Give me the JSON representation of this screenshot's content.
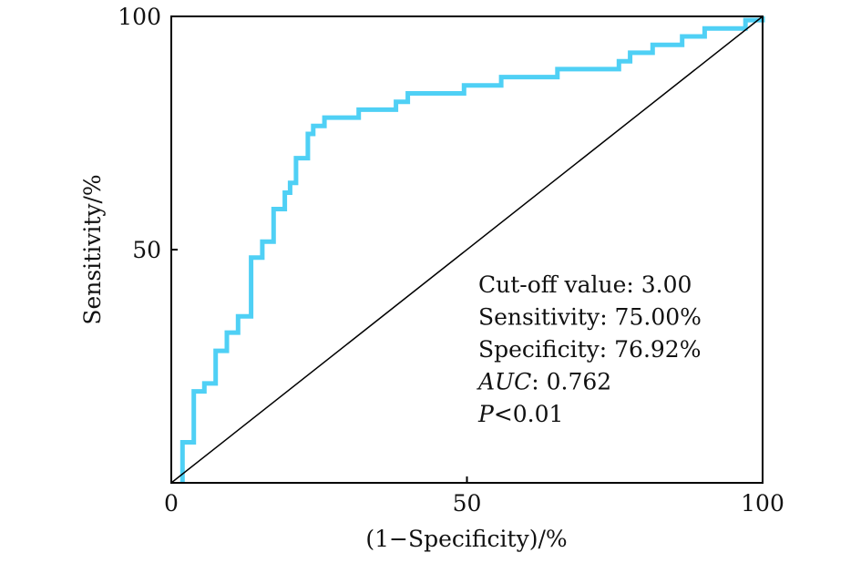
{
  "chart_data": {
    "type": "line",
    "title": "",
    "xlabel": "(1−Specificity)/%",
    "ylabel": "Sensitivity/%",
    "xlim": [
      0,
      100
    ],
    "ylim": [
      0,
      100
    ],
    "xticks": [
      "0",
      "50",
      "100"
    ],
    "yticks": [
      "50",
      "100"
    ],
    "grid": false,
    "legend": "none",
    "series": [
      {
        "color": "#4fd0f5",
        "points": [
          [
            1.9,
            0
          ],
          [
            1.9,
            0.4
          ],
          [
            1.9,
            8.7
          ],
          [
            3.8,
            8.7
          ],
          [
            3.8,
            19.6
          ],
          [
            5.6,
            19.6
          ],
          [
            5.6,
            21.3
          ],
          [
            7.5,
            21.3
          ],
          [
            7.5,
            28.3
          ],
          [
            9.4,
            28.3
          ],
          [
            9.4,
            32.2
          ],
          [
            11.3,
            32.2
          ],
          [
            11.3,
            35.7
          ],
          [
            13.5,
            35.7
          ],
          [
            13.5,
            48.3
          ],
          [
            15.4,
            48.3
          ],
          [
            15.4,
            51.7
          ],
          [
            17.3,
            51.7
          ],
          [
            17.3,
            58.7
          ],
          [
            19.2,
            58.7
          ],
          [
            19.2,
            62.2
          ],
          [
            20.1,
            62.2
          ],
          [
            20.1,
            64.3
          ],
          [
            21.1,
            64.3
          ],
          [
            21.1,
            69.6
          ],
          [
            23.1,
            69.6
          ],
          [
            23.1,
            74.8
          ],
          [
            24.0,
            74.8
          ],
          [
            24.0,
            76.5
          ],
          [
            25.9,
            76.5
          ],
          [
            25.9,
            78.3
          ],
          [
            31.7,
            78.3
          ],
          [
            31.7,
            80.0
          ],
          [
            38.0,
            80.0
          ],
          [
            38.0,
            81.7
          ],
          [
            40.0,
            81.7
          ],
          [
            40.0,
            83.5
          ],
          [
            49.5,
            83.5
          ],
          [
            49.5,
            85.2
          ],
          [
            55.8,
            85.2
          ],
          [
            55.8,
            87.0
          ],
          [
            65.3,
            87.0
          ],
          [
            65.3,
            88.7
          ],
          [
            75.7,
            88.7
          ],
          [
            75.7,
            90.4
          ],
          [
            77.6,
            90.4
          ],
          [
            77.6,
            92.2
          ],
          [
            81.4,
            92.2
          ],
          [
            81.4,
            93.9
          ],
          [
            86.4,
            93.9
          ],
          [
            86.4,
            95.7
          ],
          [
            90.2,
            95.7
          ],
          [
            90.2,
            97.4
          ],
          [
            97.1,
            97.4
          ],
          [
            97.1,
            99.2
          ],
          [
            100,
            99.2
          ],
          [
            100,
            100
          ]
        ]
      },
      {
        "color": "#000000",
        "points": [
          [
            0,
            0
          ],
          [
            100,
            100
          ]
        ]
      }
    ],
    "annotations": [
      {
        "label": "Cut-off value",
        "sep": ": ",
        "value": "3.00"
      },
      {
        "label": "Sensitivity",
        "sep": ": ",
        "value": "75.00%"
      },
      {
        "label": "Specificity",
        "sep": ": ",
        "value": "76.92%"
      },
      {
        "label": "AUC",
        "sep": ": ",
        "value": "0.762",
        "italic": true
      },
      {
        "label": "P",
        "sep": "<",
        "value": "0.01",
        "italic": true
      }
    ]
  }
}
